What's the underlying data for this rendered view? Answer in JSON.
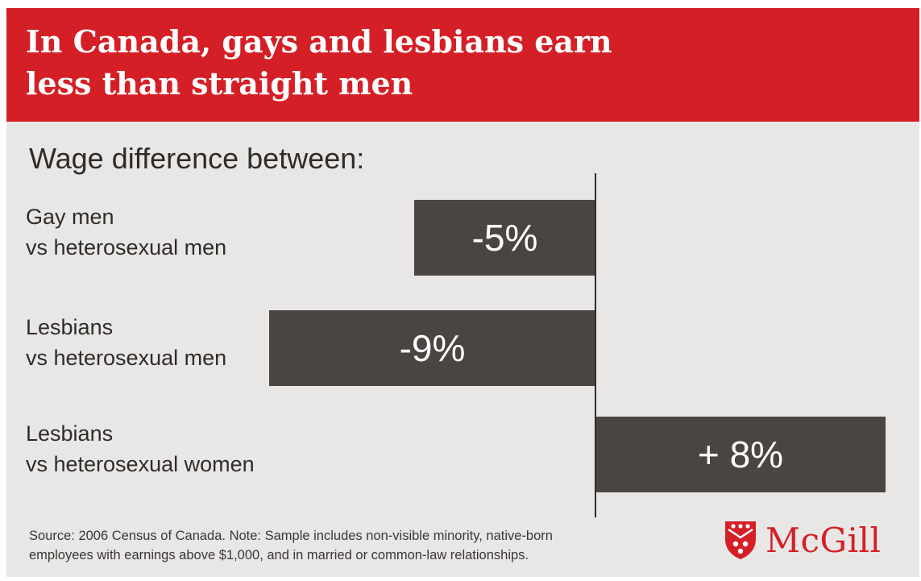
{
  "title_line1": "In Canada, gays and lesbians earn",
  "title_line2": "less than straight men",
  "colors": {
    "banner": "#d51f26",
    "background": "#e8e7e6",
    "bar": "#4a4542",
    "text": "#2f2c2a",
    "logo": "#d51f26"
  },
  "chart_data": {
    "type": "bar",
    "orientation": "horizontal",
    "title": "In Canada, gays and lesbians earn less than straight men",
    "subtitle": "Wage difference between:",
    "unit": "%",
    "categories": [
      [
        "Gay men",
        "vs heterosexual men"
      ],
      [
        "Lesbians",
        "vs heterosexual men"
      ],
      [
        "Lesbians",
        "vs heterosexual women"
      ]
    ],
    "values": [
      -5,
      -9,
      8
    ],
    "value_labels": [
      "-5%",
      "-9%",
      "+ 8%"
    ],
    "baseline": 0,
    "xlim": [
      -10,
      9
    ],
    "grid": false,
    "legend": "none"
  },
  "footnote_line1": "Source: 2006 Census of Canada. Note: Sample includes non-visible minority, native-born",
  "footnote_line2": "employees with earnings above $1,000, and in married or common-law relationships.",
  "logo_text": "McGill"
}
